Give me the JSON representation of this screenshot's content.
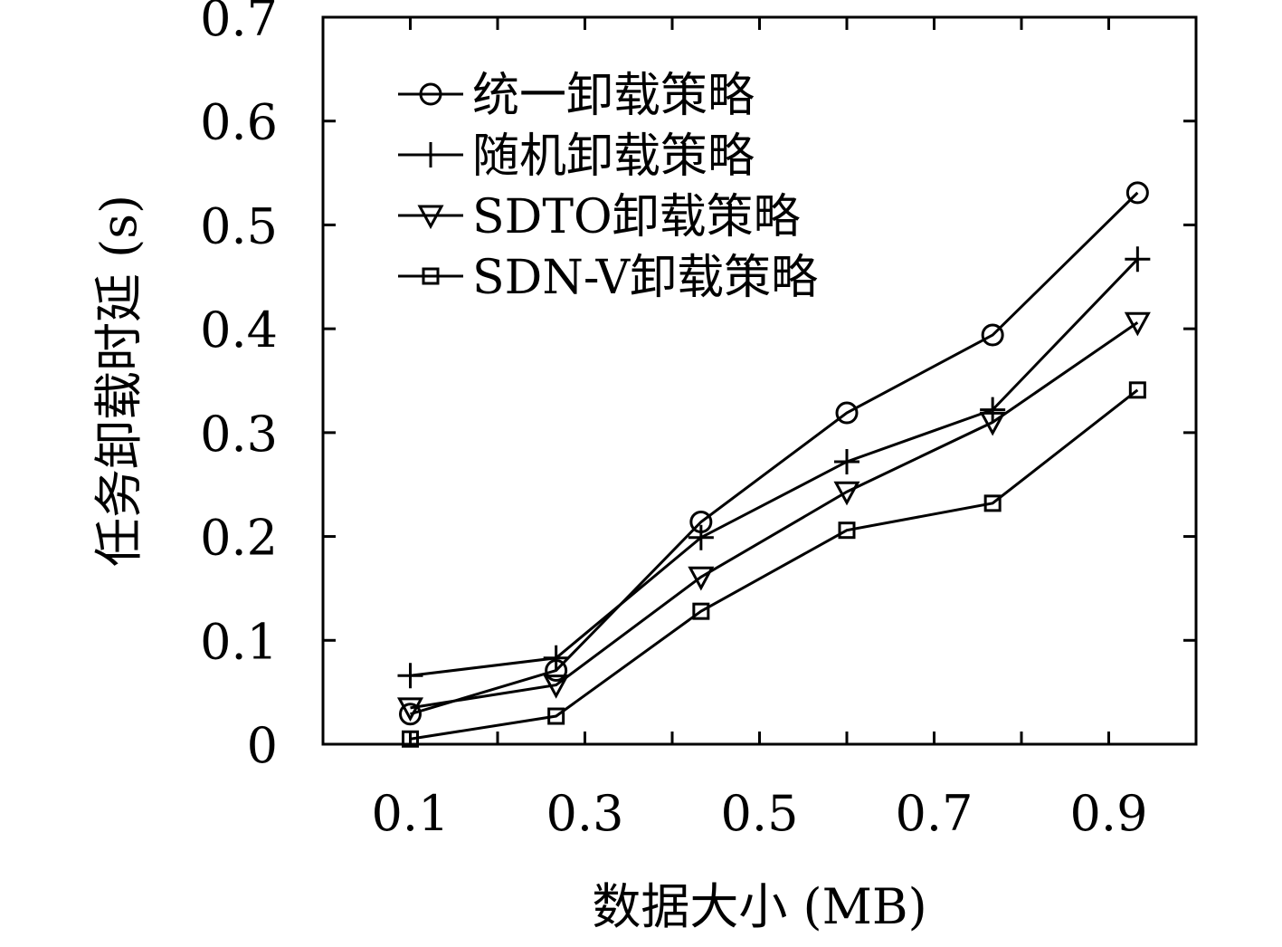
{
  "chart_data": {
    "type": "line",
    "title": "",
    "xlabel": "数据大小 (MB)",
    "ylabel": "任务卸载时延 (s)",
    "x": [
      0.1,
      0.267,
      0.433,
      0.6,
      0.767,
      0.933
    ],
    "x_ticks": [
      "0.1",
      "0.3",
      "0.5",
      "0.7",
      "0.9"
    ],
    "x_tick_values": [
      0.1,
      0.3,
      0.5,
      0.7,
      0.9
    ],
    "xlim": [
      0.0,
      1.0
    ],
    "y_ticks": [
      "0",
      "0.1",
      "0.2",
      "0.3",
      "0.4",
      "0.5",
      "0.6",
      "0.7"
    ],
    "y_tick_values": [
      0,
      0.1,
      0.2,
      0.3,
      0.4,
      0.5,
      0.6,
      0.7
    ],
    "ylim": [
      0,
      0.7
    ],
    "grid": false,
    "legend_position": "top-left",
    "series": [
      {
        "name": "统一卸载策略",
        "marker": "circle",
        "values": [
          0.029,
          0.071,
          0.214,
          0.319,
          0.394,
          0.531
        ]
      },
      {
        "name": "随机卸载策略",
        "marker": "plus",
        "values": [
          0.066,
          0.083,
          0.199,
          0.272,
          0.322,
          0.467
        ]
      },
      {
        "name": "SDTO卸载策略",
        "marker": "triangle-down",
        "values": [
          0.035,
          0.057,
          0.161,
          0.243,
          0.31,
          0.406
        ]
      },
      {
        "name": "SDN-V卸载策略",
        "marker": "square",
        "values": [
          0.005,
          0.027,
          0.128,
          0.206,
          0.232,
          0.341
        ]
      }
    ]
  }
}
